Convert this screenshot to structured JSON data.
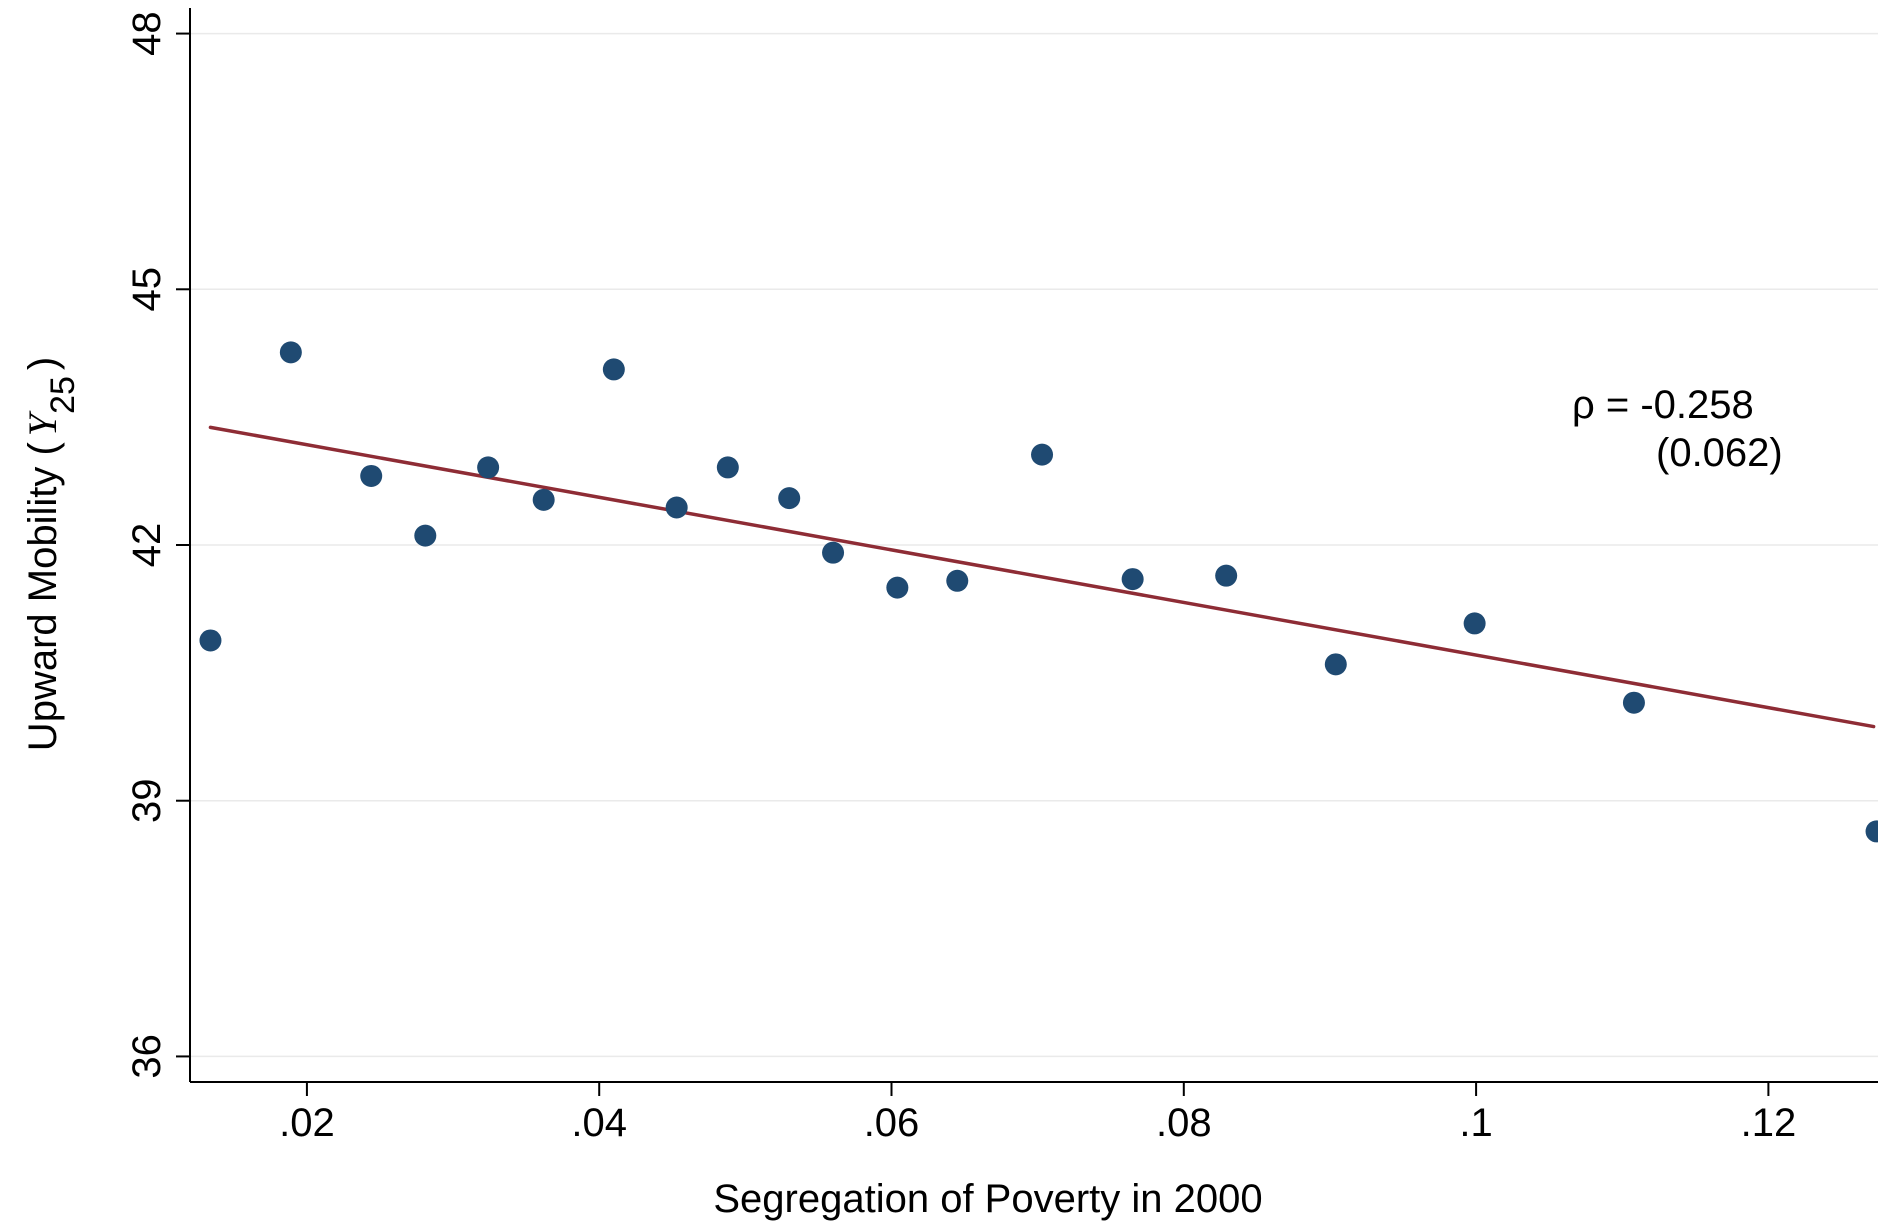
{
  "chart_data": {
    "type": "scatter",
    "xlabel": "Segregation of Poverty in 2000",
    "ylabel": {
      "prefix": "Upward Mobility (",
      "symbol": "Y",
      "subscript": "25",
      "suffix": ")"
    },
    "xlim": [
      0.012,
      0.1275
    ],
    "ylim": [
      35.7,
      48.3
    ],
    "x_ticks": [
      0.02,
      0.04,
      0.06,
      0.08,
      0.1,
      0.12
    ],
    "x_tick_labels": [
      ".02",
      ".04",
      ".06",
      ".08",
      ".1",
      ".12"
    ],
    "y_ticks": [
      36,
      39,
      42,
      45,
      48
    ],
    "y_tick_labels": [
      "36",
      "39",
      "42",
      "45",
      "48"
    ],
    "grid": "horizontal",
    "points": [
      {
        "x": 0.0134,
        "y": 40.88
      },
      {
        "x": 0.0189,
        "y": 44.26
      },
      {
        "x": 0.0244,
        "y": 42.81
      },
      {
        "x": 0.0281,
        "y": 42.11
      },
      {
        "x": 0.0324,
        "y": 42.91
      },
      {
        "x": 0.0362,
        "y": 42.53
      },
      {
        "x": 0.041,
        "y": 44.06
      },
      {
        "x": 0.0453,
        "y": 42.44
      },
      {
        "x": 0.0488,
        "y": 42.91
      },
      {
        "x": 0.053,
        "y": 42.55
      },
      {
        "x": 0.056,
        "y": 41.91
      },
      {
        "x": 0.0604,
        "y": 41.5
      },
      {
        "x": 0.0645,
        "y": 41.58
      },
      {
        "x": 0.0703,
        "y": 43.06
      },
      {
        "x": 0.0765,
        "y": 41.6
      },
      {
        "x": 0.0829,
        "y": 41.64
      },
      {
        "x": 0.0904,
        "y": 40.6
      },
      {
        "x": 0.0999,
        "y": 41.08
      },
      {
        "x": 0.1108,
        "y": 40.15
      },
      {
        "x": 0.1274,
        "y": 38.64
      }
    ],
    "fit_line": {
      "x": [
        0.0134,
        0.1272
      ],
      "y": [
        43.38,
        39.87
      ]
    },
    "annotation": {
      "rho": "ρ = -0.258",
      "se": "(0.062)"
    },
    "colors": {
      "points": "#1f4a72",
      "fit_line": "#8e2c35",
      "grid": "#eaeaea",
      "axis": "#000000"
    }
  }
}
